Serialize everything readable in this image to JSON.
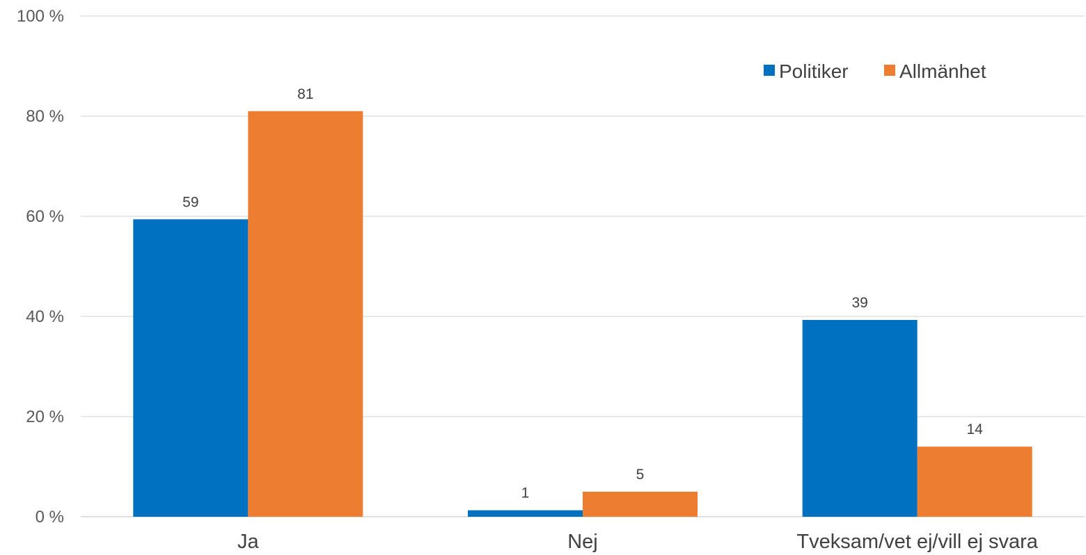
{
  "chart_data": {
    "type": "bar",
    "categories": [
      "Ja",
      "Nej",
      "Tveksam/vet ej/vill ej svara"
    ],
    "series": [
      {
        "name": "Politiker",
        "values": [
          59.4,
          1.3,
          39.3
        ],
        "labels": [
          "59",
          "1",
          "39"
        ],
        "color": "#0070c0"
      },
      {
        "name": "Allmänhet",
        "values": [
          81.0,
          5.0,
          14.0
        ],
        "labels": [
          "81",
          "5",
          "14"
        ],
        "color": "#ed7d31"
      }
    ],
    "yticks": [
      "0 %",
      "20 %",
      "40 %",
      "60 %",
      "80 %",
      "100 %"
    ],
    "ytick_values": [
      0,
      20,
      40,
      60,
      80,
      100
    ],
    "ylim": [
      0,
      100
    ],
    "grid": true,
    "legend_position": "top-right",
    "title": "",
    "xlabel": "",
    "ylabel": ""
  }
}
